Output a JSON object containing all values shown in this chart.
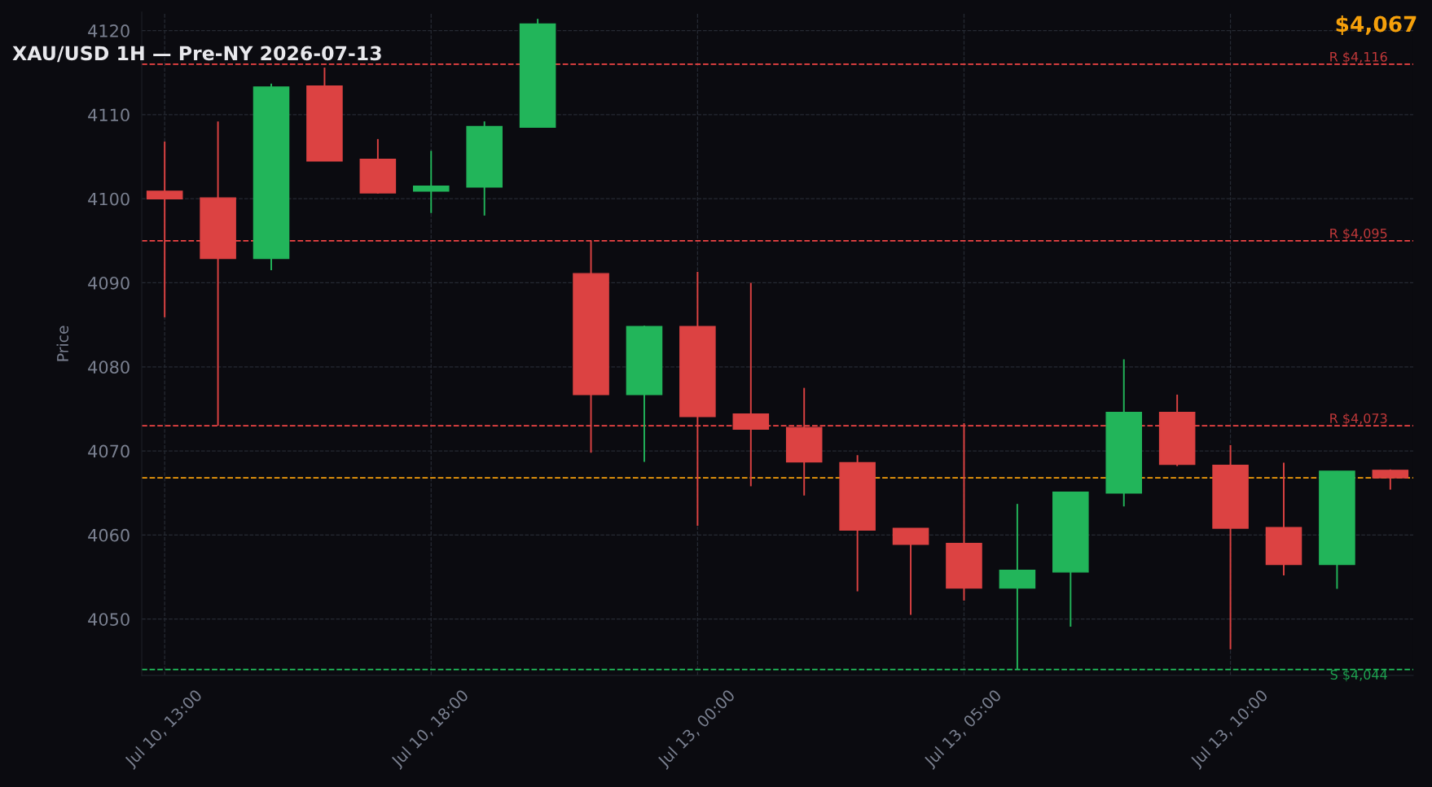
{
  "chart_data": {
    "type": "candlestick",
    "title": "XAU/USD 1H — Pre-NY 2026-07-13",
    "ylabel": "Price",
    "categories": [
      "Jul 10, 13:00",
      null,
      null,
      null,
      null,
      "Jul 10, 18:00",
      null,
      null,
      null,
      null,
      "Jul 13, 00:00",
      null,
      null,
      null,
      null,
      "Jul 13, 05:00",
      null,
      null,
      null,
      null,
      "Jul 13, 10:00",
      null,
      null,
      null
    ],
    "ohlc": [
      [
        4100.9,
        4106.8,
        4085.9,
        4100.0
      ],
      [
        4100.1,
        4109.2,
        4073.0,
        4092.9
      ],
      [
        4092.9,
        4113.7,
        4091.5,
        4113.3
      ],
      [
        4113.4,
        4115.6,
        4104.5,
        4104.5
      ],
      [
        4104.7,
        4107.1,
        4100.6,
        4100.7
      ],
      [
        4100.9,
        4105.7,
        4098.3,
        4101.5
      ],
      [
        4101.4,
        4109.2,
        4098.0,
        4108.6
      ],
      [
        4108.5,
        4121.4,
        4108.5,
        4120.8
      ],
      [
        4091.1,
        4095.0,
        4069.8,
        4076.7
      ],
      [
        4076.7,
        4084.9,
        4068.7,
        4084.8
      ],
      [
        4084.8,
        4091.3,
        4061.1,
        4074.1
      ],
      [
        4074.4,
        4090.0,
        4065.8,
        4072.6
      ],
      [
        4072.8,
        4077.5,
        4064.7,
        4068.7
      ],
      [
        4068.6,
        4069.5,
        4053.3,
        4060.6
      ],
      [
        4060.8,
        4060.8,
        4050.5,
        4058.9
      ],
      [
        4059.0,
        4073.3,
        4052.2,
        4053.7
      ],
      [
        4053.7,
        4063.7,
        4044.0,
        4055.8
      ],
      [
        4055.6,
        4065.1,
        4049.1,
        4065.1
      ],
      [
        4065.0,
        4080.9,
        4063.4,
        4074.6
      ],
      [
        4074.6,
        4076.7,
        4068.2,
        4068.4
      ],
      [
        4068.3,
        4070.7,
        4046.4,
        4060.8
      ],
      [
        4060.9,
        4068.6,
        4055.2,
        4056.5
      ],
      [
        4056.5,
        4067.6,
        4053.6,
        4067.6
      ],
      [
        4067.7,
        4067.8,
        4065.4,
        4066.8
      ]
    ],
    "colors": [
      "#dc4242",
      "#dc4242",
      "#22b55a",
      "#dc4242",
      "#dc4242",
      "#22b55a",
      "#22b55a",
      "#22b55a",
      "#dc4242",
      "#22b55a",
      "#dc4242",
      "#dc4242",
      "#dc4242",
      "#dc4242",
      "#dc4242",
      "#dc4242",
      "#22b55a",
      "#22b55a",
      "#22b55a",
      "#dc4242",
      "#dc4242",
      "#dc4242",
      "#22b55a",
      "#dc4242"
    ],
    "ylim": [
      4043.3,
      4122.2
    ],
    "yticks": [
      4050,
      4060,
      4070,
      4080,
      4090,
      4100,
      4110,
      4120
    ],
    "grid": true,
    "ref_lines": [
      {
        "axis": "y",
        "value": 4116,
        "label": "R $4,116",
        "color": "#ef4444",
        "line_style": "dashed"
      },
      {
        "axis": "y",
        "value": 4095,
        "label": "R $4,095",
        "color": "#ef4444",
        "line_style": "dashed"
      },
      {
        "axis": "y",
        "value": 4073,
        "label": "R $4,073",
        "color": "#ef4444",
        "line_style": "dashed"
      },
      {
        "axis": "y",
        "value": 4066.8,
        "color": "#f59e0b",
        "line_style": "dashed"
      },
      {
        "axis": "y",
        "value": 4044,
        "label": "S $4,044",
        "color": "#22c55e",
        "line_style": "dashed"
      }
    ],
    "annotations": [
      "$4,067"
    ]
  }
}
